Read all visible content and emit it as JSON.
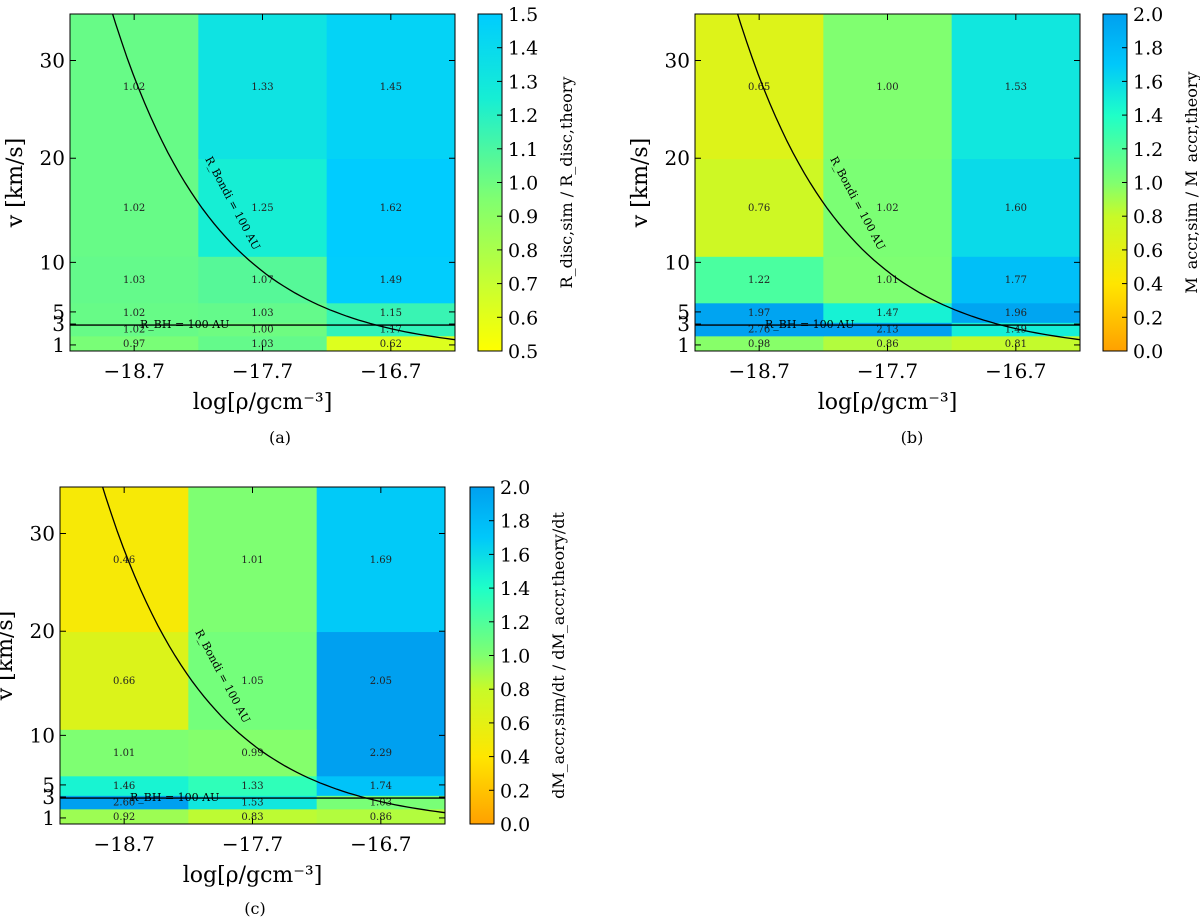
{
  "chart_data": [
    {
      "type": "heatmap",
      "caption": "(a)",
      "xlabel": "log[ρ/gcm⁻³]",
      "ylabel": "v [km/s]",
      "x_categories": [
        "−18.7",
        "−17.7",
        "−16.7"
      ],
      "y_ticks": [
        "1",
        "3",
        "5",
        "10",
        "20",
        "30"
      ],
      "colorbar": {
        "label": "R_disc,sim / R_disc,theory",
        "min": 0.5,
        "max": 1.5,
        "ticks": [
          "0.5",
          "0.6",
          "0.7",
          "0.8",
          "0.9",
          "1.0",
          "1.1",
          "1.2",
          "1.3",
          "1.4",
          "1.5"
        ]
      },
      "values": [
        [
          0.97,
          1.03,
          0.62
        ],
        [
          1.02,
          1.0,
          1.17
        ],
        [
          1.02,
          1.03,
          1.15
        ],
        [
          1.03,
          1.07,
          1.49
        ],
        [
          1.02,
          1.25,
          1.62
        ],
        [
          1.02,
          1.33,
          1.45
        ]
      ],
      "annotations": [
        "R_Bondi = 100 AU",
        "R_BH = 100 AU"
      ]
    },
    {
      "type": "heatmap",
      "caption": "(b)",
      "xlabel": "log[ρ/gcm⁻³]",
      "ylabel": "v [km/s]",
      "x_categories": [
        "−18.7",
        "−17.7",
        "−16.7"
      ],
      "y_ticks": [
        "1",
        "3",
        "5",
        "10",
        "20",
        "30"
      ],
      "colorbar": {
        "label": "M_accr,sim / M_accr,theory",
        "min": 0.0,
        "max": 2.0,
        "ticks": [
          "0.0",
          "0.2",
          "0.4",
          "0.6",
          "0.8",
          "1.0",
          "1.2",
          "1.4",
          "1.6",
          "1.8",
          "2.0"
        ]
      },
      "values": [
        [
          0.98,
          0.86,
          0.81
        ],
        [
          2.76,
          2.13,
          1.49
        ],
        [
          1.97,
          1.47,
          1.96
        ],
        [
          1.22,
          1.01,
          1.77
        ],
        [
          0.76,
          1.02,
          1.6
        ],
        [
          0.65,
          1.0,
          1.53
        ]
      ],
      "annotations": [
        "R_Bondi = 100 AU",
        "R_BH = 100 AU"
      ]
    },
    {
      "type": "heatmap",
      "caption": "(c)",
      "xlabel": "log[ρ/gcm⁻³]",
      "ylabel": "v [km/s]",
      "x_categories": [
        "−18.7",
        "−17.7",
        "−16.7"
      ],
      "y_ticks": [
        "1",
        "3",
        "5",
        "10",
        "20",
        "30"
      ],
      "colorbar": {
        "label": "dM_accr,sim/dt / dM_accr,theory/dt",
        "min": 0.0,
        "max": 2.0,
        "ticks": [
          "0.0",
          "0.2",
          "0.4",
          "0.6",
          "0.8",
          "1.0",
          "1.2",
          "1.4",
          "1.6",
          "1.8",
          "2.0"
        ]
      },
      "values": [
        [
          0.92,
          0.83,
          0.86
        ],
        [
          2.6,
          1.53,
          1.03
        ],
        [
          1.46,
          1.33,
          1.74
        ],
        [
          1.01,
          0.99,
          2.29
        ],
        [
          0.66,
          1.05,
          2.05
        ],
        [
          0.46,
          1.01,
          1.69
        ]
      ],
      "annotations": [
        "R_Bondi = 100 AU",
        "R_BH = 100 AU"
      ]
    }
  ]
}
